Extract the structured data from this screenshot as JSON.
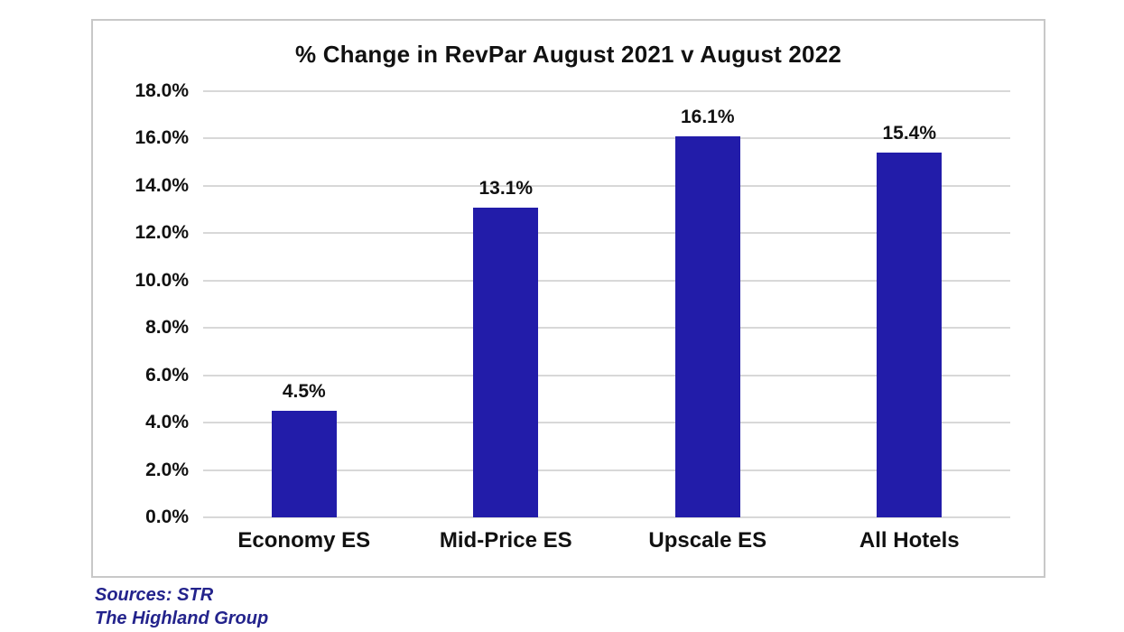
{
  "chart_data": {
    "type": "bar",
    "title": "% Change in RevPar August 2021 v August 2022",
    "categories": [
      "Economy ES",
      "Mid-Price ES",
      "Upscale ES",
      "All Hotels"
    ],
    "values": [
      4.5,
      13.1,
      16.1,
      15.4
    ],
    "value_labels": [
      "4.5%",
      "13.1%",
      "16.1%",
      "15.4%"
    ],
    "xlabel": "",
    "ylabel": "",
    "ylim": [
      0,
      18
    ],
    "ytick_step": 2,
    "ytick_labels": [
      "0.0%",
      "2.0%",
      "4.0%",
      "6.0%",
      "8.0%",
      "10.0%",
      "12.0%",
      "14.0%",
      "16.0%",
      "18.0%"
    ],
    "grid": true,
    "legend": "none",
    "bar_color": "#221CA9"
  },
  "sources": {
    "line1": "Sources: STR",
    "line2": "The Highland Group"
  },
  "colors": {
    "bar": "#221CA9",
    "gridline": "#D8D8D8",
    "chart_border": "#C8C8C8",
    "source_text": "#23238C",
    "text": "#111111"
  }
}
